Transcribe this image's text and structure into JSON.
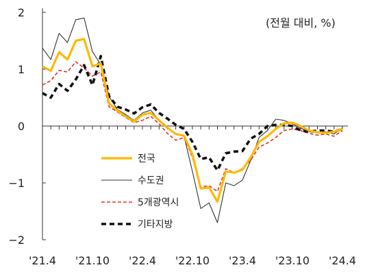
{
  "unit_label": "(전월 대비, %)",
  "chart_data": {
    "type": "line",
    "title": "",
    "xlabel": "",
    "ylabel": "",
    "ylim": [
      -2,
      2
    ],
    "y_ticks": [
      -2,
      -1,
      0,
      1,
      2
    ],
    "y_tick_labels": [
      "−2",
      "−1",
      "0",
      "1",
      "2"
    ],
    "x_tick_labels": [
      "'21.4",
      "'21.10",
      "'22.4",
      "'22.10",
      "'23.4",
      "'23.10",
      "'24.4"
    ],
    "x_tick_positions": [
      0,
      6,
      12,
      18,
      24,
      30,
      36
    ],
    "grid": false,
    "legend_position": "center-left",
    "x": [
      "2021-04",
      "2021-05",
      "2021-06",
      "2021-07",
      "2021-08",
      "2021-09",
      "2021-10",
      "2021-11",
      "2021-12",
      "2022-01",
      "2022-02",
      "2022-03",
      "2022-04",
      "2022-05",
      "2022-06",
      "2022-07",
      "2022-08",
      "2022-09",
      "2022-10",
      "2022-11",
      "2022-12",
      "2023-01",
      "2023-02",
      "2023-03",
      "2023-04",
      "2023-05",
      "2023-06",
      "2023-07",
      "2023-08",
      "2023-09",
      "2023-10",
      "2023-11",
      "2023-12",
      "2024-01",
      "2024-02",
      "2024-03",
      "2024-04"
    ],
    "series": [
      {
        "name": "전국",
        "color": "#FFB800",
        "style": "solid-thick",
        "values": [
          1.05,
          0.97,
          1.3,
          1.17,
          1.5,
          1.53,
          1.05,
          1.1,
          0.4,
          0.27,
          0.17,
          0.08,
          0.2,
          0.23,
          0.1,
          -0.03,
          -0.14,
          -0.17,
          -0.5,
          -1.1,
          -1.08,
          -1.33,
          -0.8,
          -0.82,
          -0.77,
          -0.55,
          -0.28,
          -0.18,
          -0.05,
          0.05,
          0.06,
          0.0,
          -0.08,
          -0.11,
          -0.12,
          -0.1,
          -0.05
        ]
      },
      {
        "name": "수도권",
        "color": "#333333",
        "style": "solid-thin",
        "values": [
          1.37,
          1.17,
          1.63,
          1.47,
          1.87,
          1.9,
          1.31,
          1.08,
          0.52,
          0.29,
          0.2,
          0.1,
          0.23,
          0.28,
          0.1,
          -0.04,
          -0.15,
          -0.18,
          -0.8,
          -1.45,
          -1.35,
          -1.7,
          -1.0,
          -1.05,
          -0.95,
          -0.6,
          -0.2,
          -0.08,
          0.12,
          0.1,
          0.04,
          -0.04,
          -0.1,
          -0.12,
          -0.1,
          -0.14,
          -0.03
        ]
      },
      {
        "name": "5개광역시",
        "color": "#E0312A",
        "style": "dashed-thin",
        "values": [
          0.72,
          0.8,
          0.98,
          0.95,
          1.13,
          1.02,
          0.88,
          0.95,
          0.34,
          0.25,
          0.15,
          0.06,
          0.1,
          0.17,
          0.04,
          -0.13,
          -0.25,
          -0.2,
          -0.55,
          -1.07,
          -1.05,
          -1.15,
          -0.75,
          -0.82,
          -0.75,
          -0.6,
          -0.37,
          -0.3,
          -0.2,
          -0.08,
          -0.05,
          -0.08,
          -0.13,
          -0.16,
          -0.14,
          -0.18,
          -0.08
        ]
      },
      {
        "name": "기타지방",
        "color": "#111111",
        "style": "dashed-thick",
        "values": [
          0.58,
          0.5,
          0.74,
          0.62,
          0.82,
          1.07,
          0.72,
          1.23,
          0.52,
          0.34,
          0.29,
          0.22,
          0.33,
          0.38,
          0.23,
          0.13,
          0.02,
          -0.05,
          -0.28,
          -0.58,
          -0.55,
          -0.78,
          -0.48,
          -0.45,
          -0.44,
          -0.22,
          -0.14,
          0.0,
          0.02,
          0.02,
          0.0,
          -0.08,
          -0.1,
          -0.08,
          -0.08,
          -0.1,
          -0.05
        ]
      }
    ]
  }
}
